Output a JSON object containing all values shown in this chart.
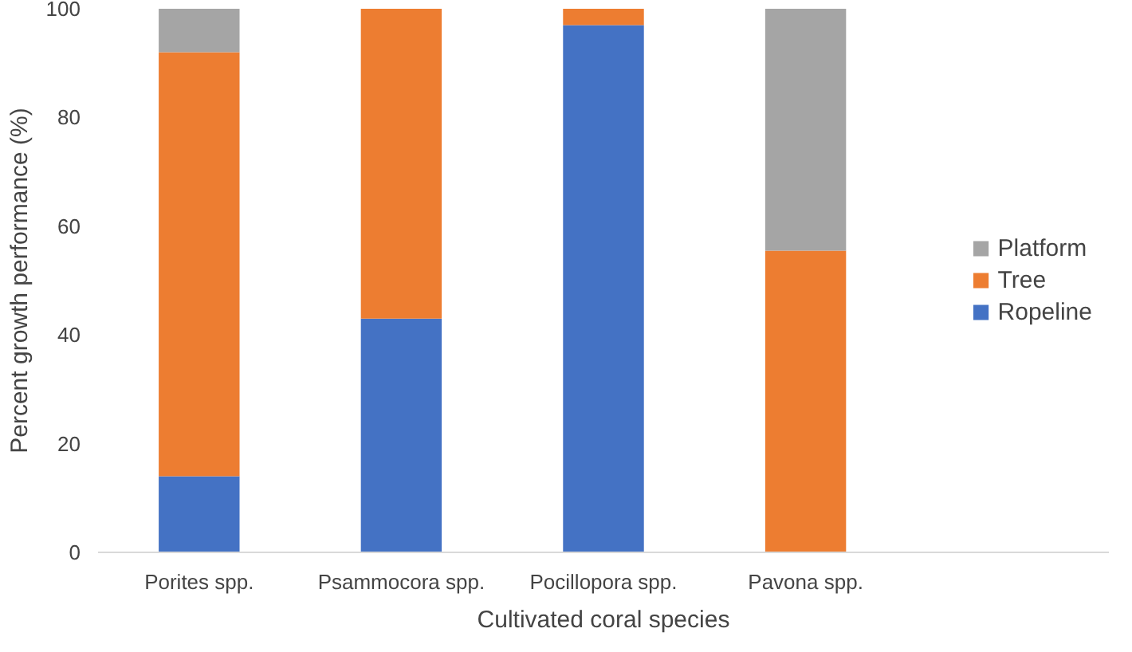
{
  "chart_data": {
    "type": "bar",
    "stacked": true,
    "xlabel": "Cultivated coral species",
    "ylabel": "Percent growth performance (%)",
    "categories": [
      "Porites spp.",
      "Psammocora spp.",
      "Pocillopora spp.",
      "Pavona spp."
    ],
    "series": [
      {
        "name": "Ropeline",
        "color": "#4472c4",
        "values": [
          14,
          43,
          97,
          0
        ]
      },
      {
        "name": "Tree",
        "color": "#ed7d31",
        "values": [
          78,
          57,
          3,
          55.5
        ]
      },
      {
        "name": "Platform",
        "color": "#a5a5a5",
        "values": [
          8,
          0,
          0,
          44.5
        ]
      }
    ],
    "ylim": [
      0,
      100
    ],
    "yticks": [
      0,
      20,
      40,
      60,
      80,
      100
    ],
    "grid": false,
    "legend": "right"
  }
}
